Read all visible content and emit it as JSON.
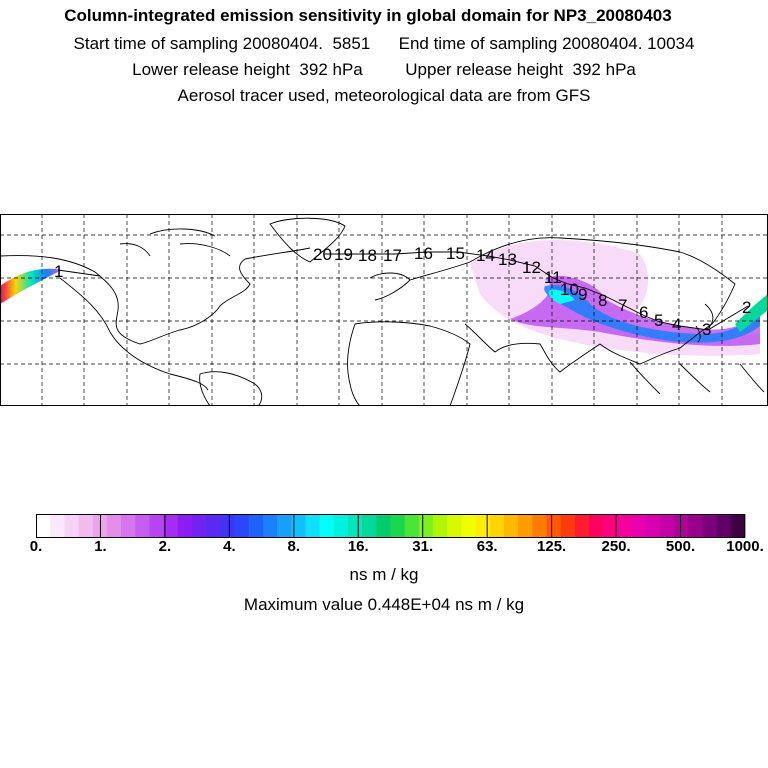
{
  "header": {
    "title": "Column-integrated emission sensitivity in global domain for NP3_20080403",
    "line2": "Start time of sampling 20080404.  5851      End time of sampling 20080404. 10034",
    "line3": "Lower release height  392 hPa         Upper release height  392 hPa",
    "line4": "Aerosol tracer used, meteorological data are from GFS"
  },
  "map": {
    "trajectory_labels": [
      "1",
      "2",
      "3",
      "4",
      "5",
      "6",
      "7",
      "8",
      "9",
      "10",
      "11",
      "12",
      "13",
      "14",
      "15",
      "16",
      "17",
      "18",
      "19",
      "20"
    ],
    "colors": {
      "frame": "#000000",
      "graticule": "#000000",
      "coast": "#000000"
    }
  },
  "colorbar": {
    "tick_labels": [
      "0.",
      "1.",
      "2.",
      "4.",
      "8.",
      "16.",
      "31.",
      "63.",
      "125.",
      "250.",
      "500.",
      "1000."
    ],
    "units": "ns m / kg",
    "max_value_text": "Maximum value  0.448E+04 ns m / kg",
    "colors": [
      "#ffffff",
      "#fbe9fb",
      "#f6d2f6",
      "#f0bcf0",
      "#eaa4ea",
      "#e38de9",
      "#d775ec",
      "#c85cee",
      "#b744f0",
      "#a52cf2",
      "#8c1cf2",
      "#7322f4",
      "#5a29f5",
      "#4233f6",
      "#2a47f8",
      "#1e62fa",
      "#1a80fb",
      "#16a0fc",
      "#12bffd",
      "#0ee0fe",
      "#00ffff",
      "#00f2de",
      "#00e6bd",
      "#00d99c",
      "#00cc6b",
      "#1ad84d",
      "#4ce534",
      "#7ef01c",
      "#b0f408",
      "#d8f900",
      "#f0ff00",
      "#ffee00",
      "#ffd400",
      "#ffb800",
      "#ff9c00",
      "#ff7c00",
      "#ff5a00",
      "#ff3a10",
      "#ff1c30",
      "#ff0060",
      "#ff0080",
      "#f4009a",
      "#e800ac",
      "#d800b0",
      "#c400a8",
      "#b0009c",
      "#98008c",
      "#7c007a",
      "#600066",
      "#400044"
    ]
  }
}
